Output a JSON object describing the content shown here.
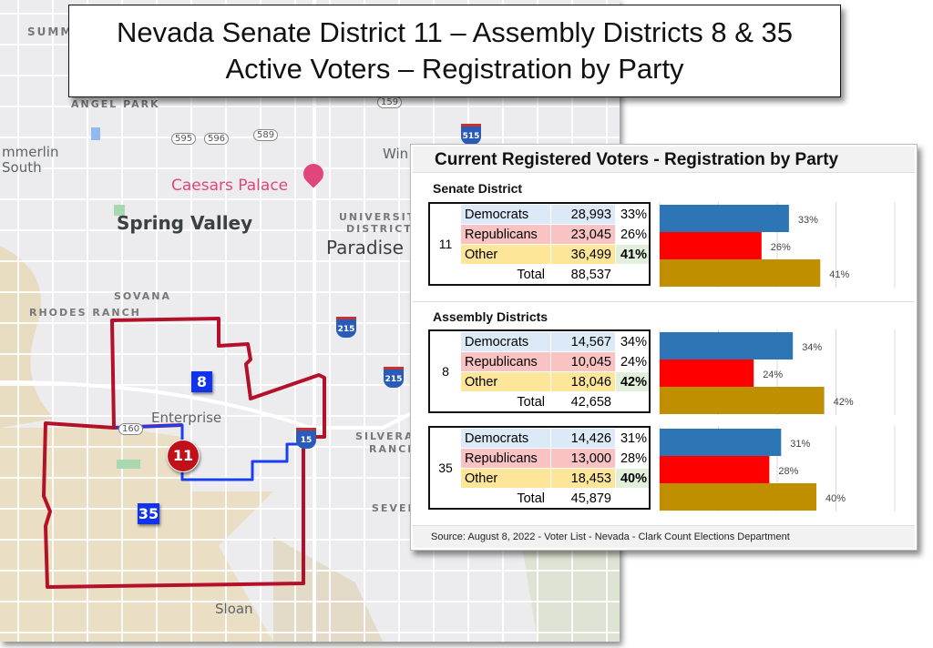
{
  "title": {
    "line1": "Nevada Senate District 11 – Assembly Districts 8 & 35",
    "line2": "Active Voters – Registration by Party"
  },
  "map": {
    "labels": [
      "SUMM",
      "ANGEL PARK",
      "mmerlin",
      "South",
      "Caesars Palace",
      "Spring Valley",
      "UNIVERSITY",
      "DISTRICT",
      "Paradise",
      "SOVANA",
      "RHODES RANCH",
      "Enterprise",
      "SILVERA",
      "RANCH",
      "SEVEN",
      "Sloan",
      "Win"
    ],
    "route_shields": [
      "595",
      "596",
      "589",
      "159",
      "160"
    ],
    "interstate_shields": [
      "515",
      "215",
      "215",
      "15"
    ],
    "district_badges": {
      "assembly_8": "8",
      "assembly_35": "35",
      "senate_11": "11"
    },
    "colors": {
      "senate_boundary": "#b5102a",
      "assembly_split": "#1a3ff0",
      "badge": "#1133ee"
    }
  },
  "panel": {
    "heading": "Current Registered Voters - Registration by Party",
    "senate_section": "Senate District",
    "assembly_section": "Assembly Districts",
    "source": "Source: August 8, 2022 - Voter List - Nevada - Clark Count Elections Department"
  },
  "chart_data": {
    "type": "bar",
    "orientation": "horizontal",
    "xlim": [
      0,
      60
    ],
    "grid": true,
    "categories": [
      "Democrats",
      "Republicans",
      "Other"
    ],
    "colors": {
      "Democrats": "#2e75b6",
      "Republicans": "#ff0000",
      "Other": "#bf8f00"
    },
    "groups": [
      {
        "district": "11",
        "section": "Senate District",
        "rows": [
          {
            "party": "Democrats",
            "count": "28,993",
            "pct_label": "33%",
            "pct": 33
          },
          {
            "party": "Republicans",
            "count": "23,045",
            "pct_label": "26%",
            "pct": 26
          },
          {
            "party": "Other",
            "count": "36,499",
            "pct_label": "41%",
            "pct": 41
          }
        ],
        "total_label": "Total",
        "total": "88,537"
      },
      {
        "district": "8",
        "section": "Assembly Districts",
        "rows": [
          {
            "party": "Democrats",
            "count": "14,567",
            "pct_label": "34%",
            "pct": 34
          },
          {
            "party": "Republicans",
            "count": "10,045",
            "pct_label": "24%",
            "pct": 24
          },
          {
            "party": "Other",
            "count": "18,046",
            "pct_label": "42%",
            "pct": 42
          }
        ],
        "total_label": "Total",
        "total": "42,658"
      },
      {
        "district": "35",
        "section": "Assembly Districts",
        "rows": [
          {
            "party": "Democrats",
            "count": "14,426",
            "pct_label": "31%",
            "pct": 31
          },
          {
            "party": "Republicans",
            "count": "13,000",
            "pct_label": "28%",
            "pct": 28
          },
          {
            "party": "Other",
            "count": "18,453",
            "pct_label": "40%",
            "pct": 40
          }
        ],
        "total_label": "Total",
        "total": "45,879"
      }
    ]
  }
}
